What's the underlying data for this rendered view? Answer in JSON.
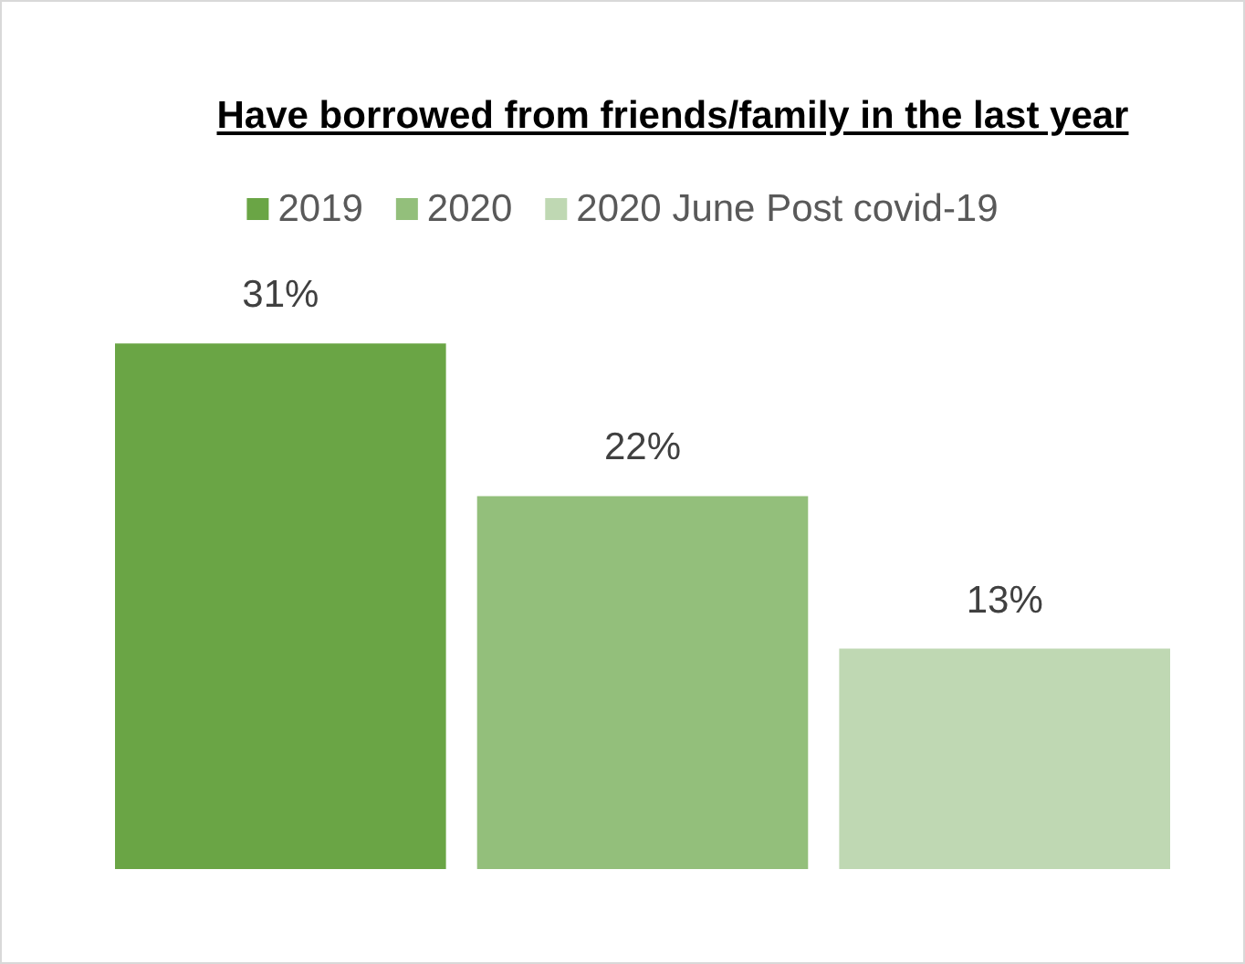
{
  "chart_data": {
    "type": "bar",
    "title": "Have borrowed from friends/family in the last year",
    "categories": [
      null
    ],
    "legend": "top",
    "series": [
      {
        "name": "2019",
        "color": "#6aa545",
        "values": [
          31
        ],
        "value_labels": [
          "31%"
        ]
      },
      {
        "name": "2020",
        "color": "#93bf7b",
        "values": [
          22
        ],
        "value_labels": [
          "22%"
        ]
      },
      {
        "name": "2020 June Post covid-19",
        "color": "#bfd8b3",
        "values": [
          13
        ],
        "value_labels": [
          "13%"
        ]
      }
    ]
  }
}
